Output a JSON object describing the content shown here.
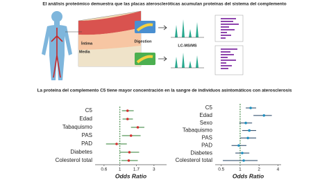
{
  "header": {
    "title": "El análisis proteómico demuestra que las placas ateroscleróticas acumulan proteínas del sistema del complemento",
    "subtitle": "La proteína del complemento C5 tiene mayor concentración en la sangre de individuos asintomáticos con aterosclerosis"
  },
  "illustration": {
    "intima": "Íntima",
    "media": "Media",
    "digestion": "Digestion",
    "lcms": "LC-MS/MS"
  },
  "chart_data": [
    {
      "type": "forest",
      "xlabel": "Odds Ratio",
      "log_scale": true,
      "categories": [
        "C5",
        "Edad",
        "Tabaquismo",
        "PAS",
        "PAD",
        "Diabetes",
        "Colesterol total"
      ],
      "values": [
        1.28,
        1.28,
        1.78,
        1.43,
        0.9,
        1.36,
        1.33
      ],
      "lower": [
        1.07,
        1.09,
        1.43,
        1.07,
        0.64,
        1.0,
        1.05
      ],
      "upper": [
        1.56,
        1.52,
        2.2,
        1.95,
        1.25,
        1.86,
        1.78
      ],
      "xlim": [
        0.45,
        4.5
      ],
      "xticks": [
        0.6,
        1,
        1.7,
        3
      ],
      "reference": 1,
      "color": "#d32f2f",
      "ci_color": "#2e7d32",
      "reference_color": "#2e7d32"
    },
    {
      "type": "forest",
      "xlabel": "Odds Ratio",
      "log_scale": true,
      "categories": [
        "C5",
        "Edad",
        "Sexo",
        "Tabaquismo",
        "PAS",
        "PAD",
        "Diabetes",
        "Colesterol total"
      ],
      "values": [
        1.47,
        2.4,
        1.23,
        1.4,
        1.33,
        0.95,
        1.08,
        1.14
      ],
      "lower": [
        1.23,
        1.63,
        0.97,
        1.08,
        1.0,
        0.73,
        0.84,
        0.53
      ],
      "upper": [
        1.8,
        3.2,
        1.55,
        1.8,
        1.8,
        1.26,
        1.4,
        1.9
      ],
      "xlim": [
        0.4,
        4.5
      ],
      "xticks": [
        0.5,
        1,
        2,
        4
      ],
      "reference": 1,
      "color": "#1f8fbf",
      "ci_color": "#1f3f5f",
      "reference_color": "#2e7d32"
    }
  ]
}
